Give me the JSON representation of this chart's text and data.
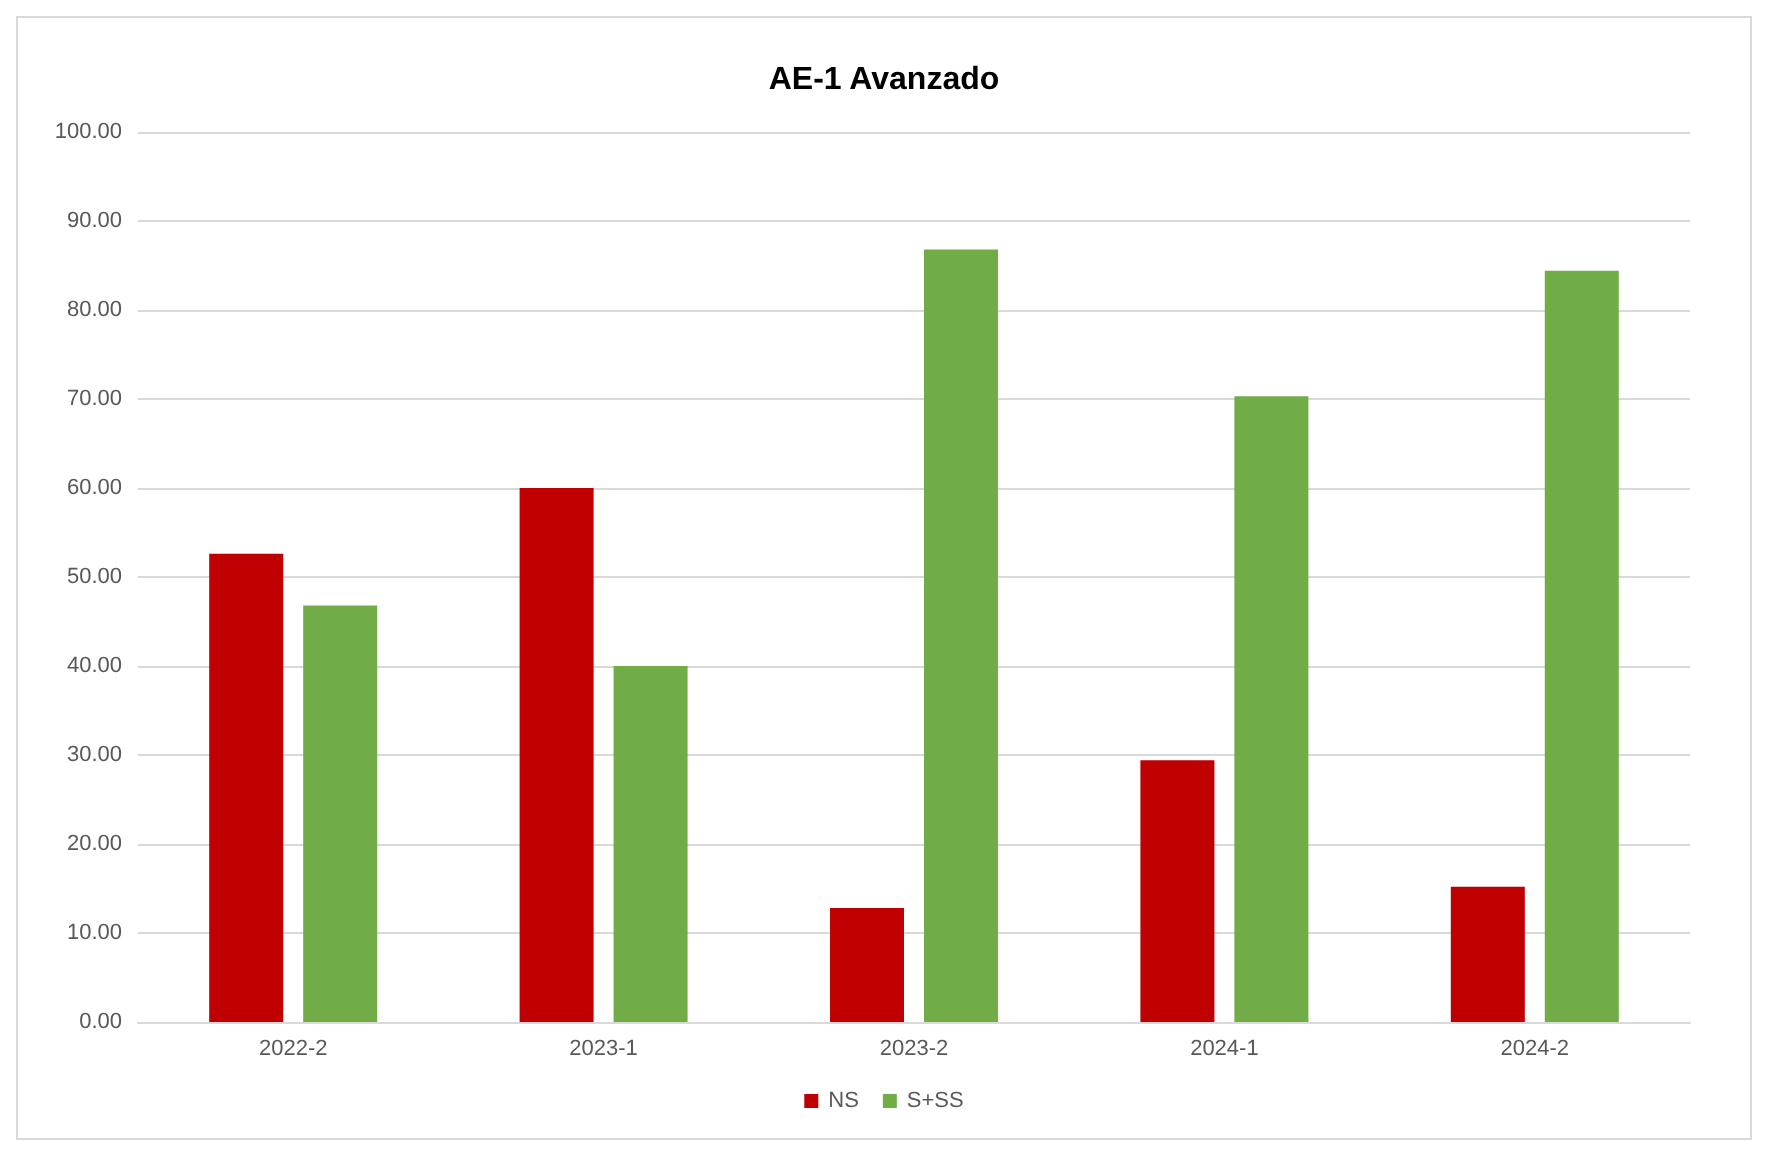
{
  "chart_data": {
    "type": "bar",
    "title": "AE-1 Avanzado",
    "categories": [
      "2022-2",
      "2023-1",
      "2023-2",
      "2024-1",
      "2024-2"
    ],
    "series": [
      {
        "name": "NS",
        "color": "#c00000",
        "values": [
          52.6,
          60.0,
          12.8,
          29.4,
          15.2
        ]
      },
      {
        "name": "S+SS",
        "color": "#70ad47",
        "values": [
          46.8,
          40.0,
          86.8,
          70.3,
          84.4
        ]
      }
    ],
    "ylim": [
      0,
      100
    ],
    "yticks": [
      {
        "value": 0,
        "label": "0.00"
      },
      {
        "value": 10,
        "label": "10.00"
      },
      {
        "value": 20,
        "label": "20.00"
      },
      {
        "value": 30,
        "label": "30.00"
      },
      {
        "value": 40,
        "label": "40.00"
      },
      {
        "value": 50,
        "label": "50.00"
      },
      {
        "value": 60,
        "label": "60.00"
      },
      {
        "value": 70,
        "label": "70.00"
      },
      {
        "value": 80,
        "label": "80.00"
      },
      {
        "value": 90,
        "label": "90.00"
      },
      {
        "value": 100,
        "label": "100.00"
      }
    ],
    "grid": true,
    "legend": "bottom"
  }
}
